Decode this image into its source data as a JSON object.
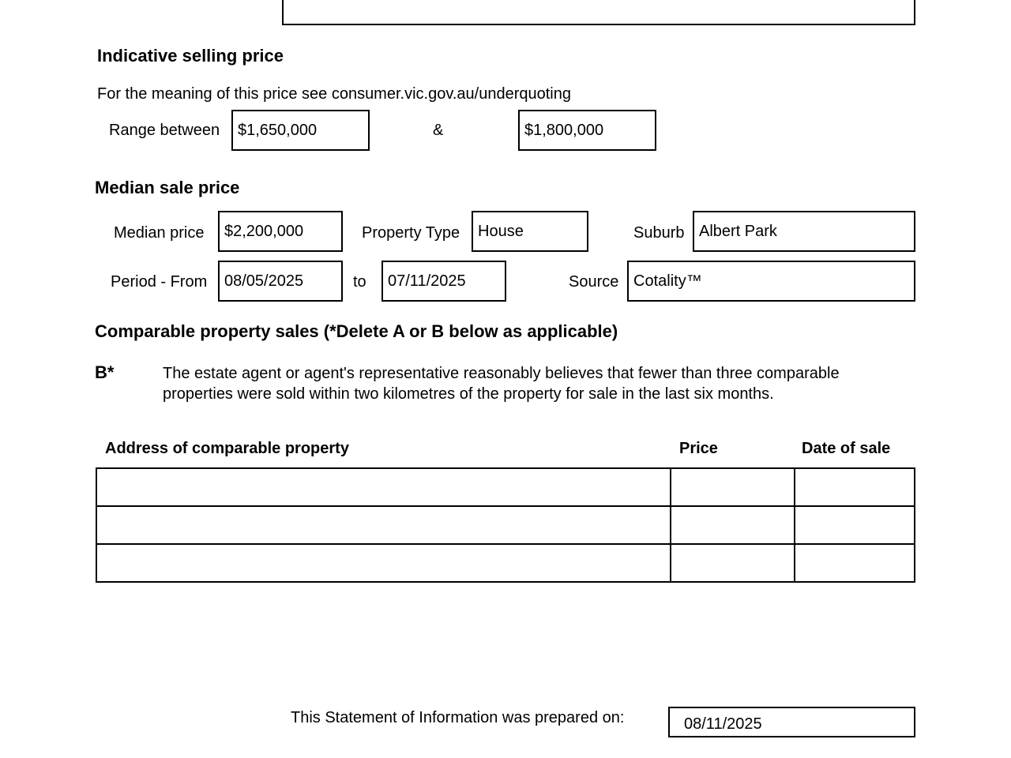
{
  "indicative": {
    "heading": "Indicative selling price",
    "meaning_text": "For the meaning of this price see consumer.vic.gov.au/underquoting",
    "range_label": "Range between",
    "range_low": "$1,650,000",
    "ampersand": "&",
    "range_high": "$1,800,000"
  },
  "median": {
    "heading": "Median sale price",
    "median_price_label": "Median price",
    "median_price": "$2,200,000",
    "property_type_label": "Property Type",
    "property_type": "House",
    "suburb_label": "Suburb",
    "suburb": "Albert Park",
    "period_from_label": "Period - From",
    "period_from": "08/05/2025",
    "to_label": "to",
    "period_to": "07/11/2025",
    "source_label": "Source",
    "source": "Cotality™"
  },
  "comparable": {
    "heading": "Comparable property sales (*Delete A or B below as applicable)",
    "option_label": "B*",
    "option_text": "The estate agent or agent's representative reasonably believes that fewer than three comparable properties were sold within two kilometres of the property for sale in the last six months.",
    "columns": [
      "Address of comparable property",
      "Price",
      "Date of sale"
    ],
    "rows": [
      [
        "",
        "",
        ""
      ],
      [
        "",
        "",
        ""
      ],
      [
        "",
        "",
        ""
      ]
    ]
  },
  "footer": {
    "prepared_label": "This Statement of Information was prepared on:",
    "prepared_date": "08/11/2025"
  }
}
